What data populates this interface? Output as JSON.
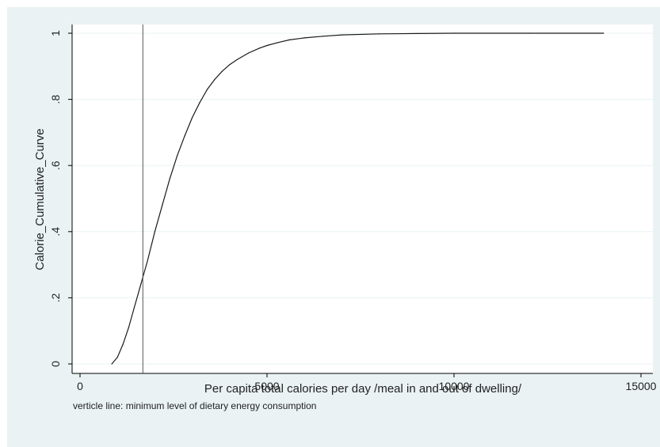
{
  "chart_data": {
    "type": "line",
    "title": "",
    "xlabel": "Per capita total calories per day /meal in and out of dwelling/",
    "ylabel": "Calorie_Cumulative_Curve",
    "note": "verticle line: minimum level of dietary energy consumption",
    "xlim": [
      0,
      15000
    ],
    "ylim": [
      0,
      1
    ],
    "x_ticks": [
      0,
      5000,
      10000,
      15000
    ],
    "x_tick_labels": [
      "0",
      "5000",
      "10000",
      "15000"
    ],
    "y_ticks": [
      0,
      0.2,
      0.4,
      0.6,
      0.8,
      1
    ],
    "y_tick_labels": [
      "0",
      ".2",
      ".4",
      ".6",
      ".8",
      "1"
    ],
    "grid": "horizontal",
    "reference_line": {
      "orientation": "vertical",
      "x": 1680
    },
    "series": [
      {
        "x": [
          850,
          1000,
          1150,
          1300,
          1450,
          1600,
          1700,
          1800,
          2000,
          2200,
          2400,
          2600,
          2800,
          3000,
          3200,
          3400,
          3600,
          3800,
          4000,
          4200,
          4500,
          4800,
          5000,
          5300,
          5600,
          6000,
          6500,
          7000,
          8000,
          9000,
          10000,
          12000,
          14000
        ],
        "y": [
          0.0,
          0.02,
          0.06,
          0.11,
          0.17,
          0.23,
          0.27,
          0.31,
          0.4,
          0.48,
          0.56,
          0.63,
          0.69,
          0.745,
          0.79,
          0.83,
          0.86,
          0.885,
          0.905,
          0.92,
          0.94,
          0.955,
          0.963,
          0.972,
          0.98,
          0.986,
          0.991,
          0.995,
          0.998,
          0.999,
          1.0,
          1.0,
          1.0
        ]
      }
    ],
    "colors": {
      "background": "#eaf2f3",
      "plot_area": "#ffffff",
      "line": "#1a1a1a",
      "grid": "#eaf2f3"
    }
  }
}
